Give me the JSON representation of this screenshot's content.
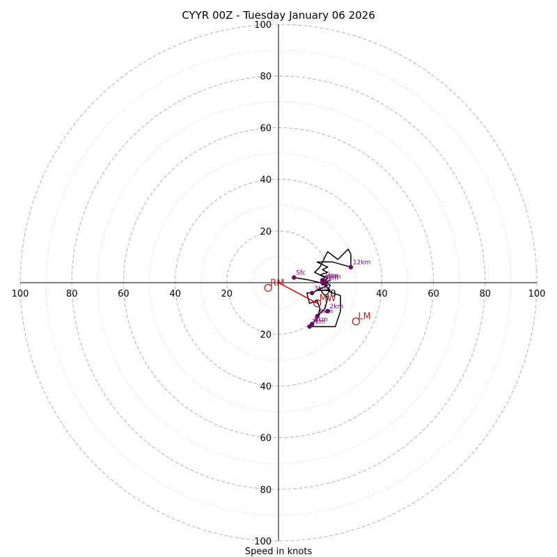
{
  "chart_data": {
    "type": "hodograph",
    "title": "CYYR 00Z - Tuesday January 06 2026",
    "xlabel": "Speed in knots",
    "ring_max": 100,
    "ring_step": 10,
    "tick_labels": [
      "20",
      "40",
      "60",
      "80",
      "100"
    ],
    "colors": {
      "trace": "#000000",
      "points": "#6a0b6a",
      "labels": "#800080",
      "motion": "#b22222",
      "shear_vector": "#e00000",
      "rings": "#b8b8b8"
    },
    "trace": [
      [
        6,
        2
      ],
      [
        12,
        1
      ],
      [
        16,
        0
      ],
      [
        18,
        0.5
      ],
      [
        17,
        1
      ],
      [
        19,
        0
      ],
      [
        17,
        -1
      ],
      [
        18,
        0
      ],
      [
        20,
        1
      ],
      [
        17,
        -0.5
      ],
      [
        19,
        -1
      ],
      [
        17,
        -2
      ],
      [
        15,
        -3
      ],
      [
        16,
        -2
      ],
      [
        17,
        -4
      ],
      [
        19,
        -6
      ],
      [
        18,
        -10
      ],
      [
        16,
        -12
      ],
      [
        15,
        -14
      ],
      [
        14,
        -15
      ],
      [
        13,
        -16
      ],
      [
        12,
        -17
      ],
      [
        14,
        -17
      ],
      [
        17,
        -17
      ],
      [
        22,
        -17
      ],
      [
        24,
        -11
      ],
      [
        24,
        -5
      ],
      [
        21,
        -4
      ],
      [
        19,
        -3
      ],
      [
        20,
        -1
      ],
      [
        17,
        1
      ],
      [
        18,
        2
      ],
      [
        14,
        4
      ],
      [
        16,
        6
      ],
      [
        19,
        12
      ],
      [
        23,
        9
      ],
      [
        27,
        13
      ],
      [
        28,
        11
      ],
      [
        28,
        6
      ],
      [
        21,
        8
      ],
      [
        15,
        8
      ],
      [
        19,
        6
      ],
      [
        17,
        5
      ],
      [
        19,
        4
      ],
      [
        16,
        3
      ],
      [
        19,
        2
      ],
      [
        17,
        0
      ],
      [
        20,
        -3
      ],
      [
        15,
        -3
      ],
      [
        13,
        -4
      ],
      [
        11,
        -4
      ],
      [
        12,
        -8
      ],
      [
        15,
        -7
      ],
      [
        16,
        -10
      ],
      [
        15,
        -14
      ]
    ],
    "points": [
      {
        "label": "Sfc",
        "u": 6,
        "v": 2
      },
      {
        "label": "1km",
        "u": 17,
        "v": 1
      },
      {
        "label": "6km",
        "u": 18,
        "v": 0.5
      },
      {
        "label": "5km",
        "u": 17,
        "v": 0
      },
      {
        "label": "3km",
        "u": 13,
        "v": -4
      },
      {
        "label": "2km",
        "u": 19,
        "v": -11
      },
      {
        "label": "6km",
        "u": 15,
        "v": -13
      },
      {
        "label": "8km",
        "u": 13,
        "v": -16
      },
      {
        "label": "7km",
        "u": 12,
        "v": -17
      },
      {
        "label": "12km",
        "u": 28,
        "v": 6
      }
    ],
    "storm_motion": [
      {
        "label": "RM",
        "u": -4,
        "v": -2
      },
      {
        "label": "LM",
        "u": 30,
        "v": -15
      },
      {
        "label": "MW",
        "u": 15,
        "v": -8
      }
    ],
    "shear_vector": {
      "from": [
        0,
        0
      ],
      "to": [
        15,
        -8
      ]
    }
  }
}
